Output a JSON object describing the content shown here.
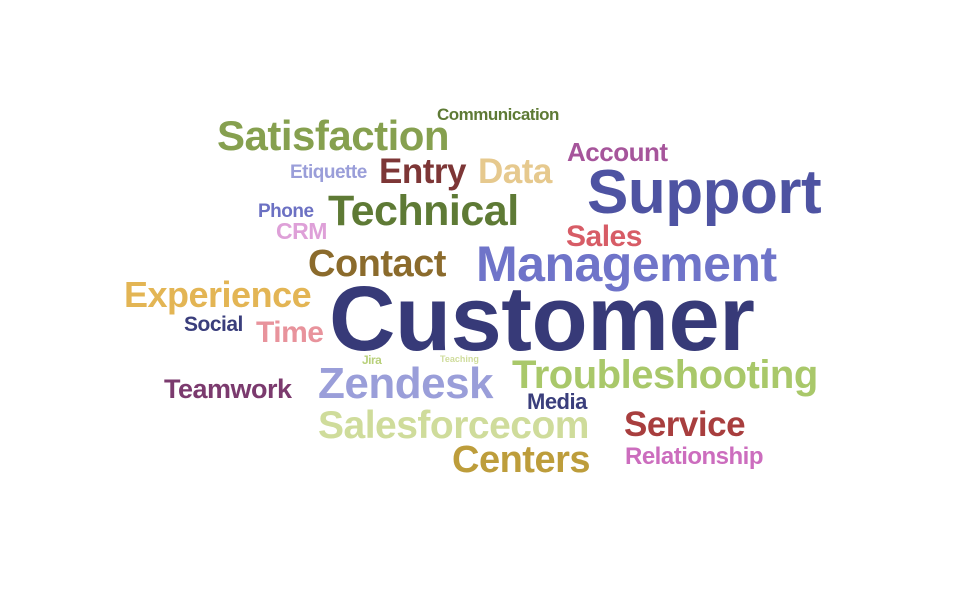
{
  "words": [
    {
      "text": "Customer",
      "weight": 100,
      "color": "#373a78"
    },
    {
      "text": "Support",
      "weight": 58,
      "color": "#4e53a2"
    },
    {
      "text": "Management",
      "weight": 42,
      "color": "#6f74c9"
    },
    {
      "text": "Troubleshooting",
      "weight": 34,
      "color": "#a9c86a"
    },
    {
      "text": "Zendesk",
      "weight": 38,
      "color": "#9a9ed9"
    },
    {
      "text": "Salesforcecom",
      "weight": 34,
      "color": "#cfdc9b"
    },
    {
      "text": "Satisfaction",
      "weight": 38,
      "color": "#86a04f"
    },
    {
      "text": "Technical",
      "weight": 38,
      "color": "#5e7a35"
    },
    {
      "text": "Contact",
      "weight": 34,
      "color": "#8b6b2c"
    },
    {
      "text": "Experience",
      "weight": 34,
      "color": "#e3b554"
    },
    {
      "text": "Centers",
      "weight": 34,
      "color": "#bd9d3b"
    },
    {
      "text": "Service",
      "weight": 30,
      "color": "#a83e3e"
    },
    {
      "text": "Entry",
      "weight": 30,
      "color": "#7d3636"
    },
    {
      "text": "Data",
      "weight": 30,
      "color": "#e6c98e"
    },
    {
      "text": "Sales",
      "weight": 26,
      "color": "#d75c66"
    },
    {
      "text": "Time",
      "weight": 26,
      "color": "#e8939c"
    },
    {
      "text": "Teamwork",
      "weight": 24,
      "color": "#7b3a6e"
    },
    {
      "text": "Account",
      "weight": 22,
      "color": "#a6559b"
    },
    {
      "text": "Relationship",
      "weight": 20,
      "color": "#cc6dbe"
    },
    {
      "text": "Media",
      "weight": 20,
      "color": "#3a3e7c"
    },
    {
      "text": "Social",
      "weight": 18,
      "color": "#3a3e7c"
    },
    {
      "text": "CRM",
      "weight": 20,
      "color": "#dea0d8"
    },
    {
      "text": "Phone",
      "weight": 16,
      "color": "#6c71c3"
    },
    {
      "text": "Etiquette",
      "weight": 16,
      "color": "#9a9ed9"
    },
    {
      "text": "Communication",
      "weight": 14,
      "color": "#5e7a35"
    },
    {
      "text": "Jira",
      "weight": 10,
      "color": "#b8d07a"
    },
    {
      "text": "Teaching",
      "weight": 8,
      "color": "#cfdc9b"
    }
  ]
}
